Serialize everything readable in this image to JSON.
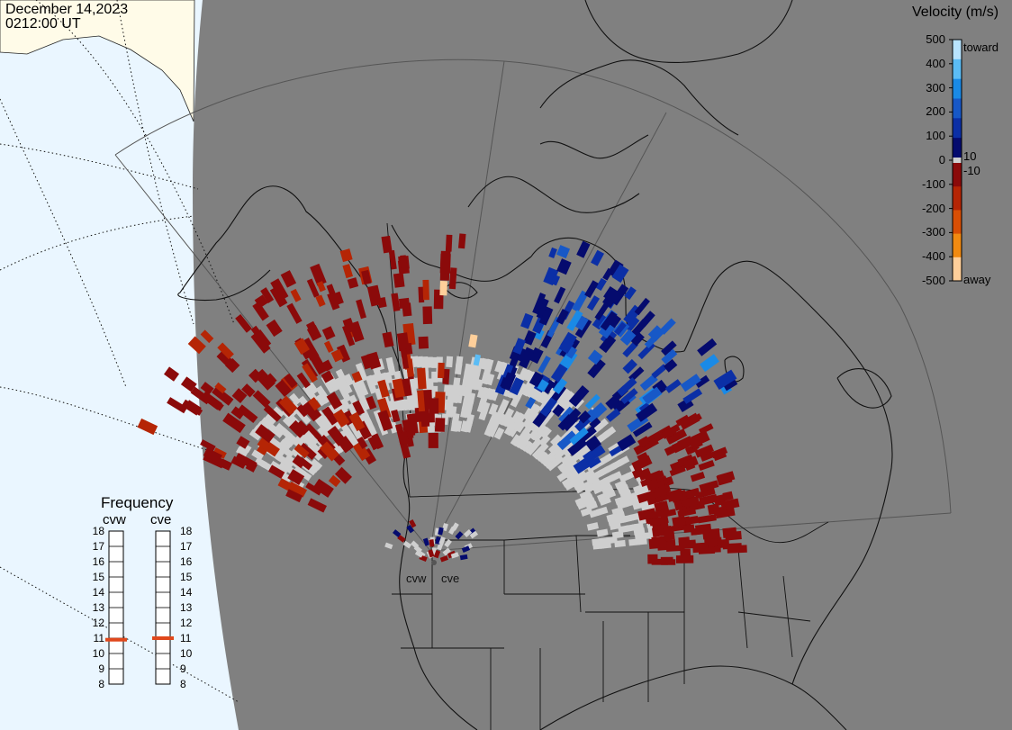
{
  "header": {
    "date": "December 14,2023",
    "time": "0212:00 UT"
  },
  "colorbar": {
    "title": "Velocity (m/s)",
    "ticks": [
      "500",
      "400",
      "300",
      "200",
      "100",
      "0",
      "-100",
      "-200",
      "-300",
      "-400",
      "-500"
    ],
    "near_zero_pos": "10",
    "near_zero_neg": "-10",
    "toward_label": "toward",
    "away_label": "away",
    "colors": [
      "#b8e4ff",
      "#5bbcf5",
      "#1a8ae6",
      "#1758c7",
      "#0b2fa6",
      "#050b6e",
      "#8b0a0a",
      "#b52505",
      "#d94f05",
      "#f18a11",
      "#ffcf9a"
    ],
    "ground_scatter_color": "#cfcfcf"
  },
  "frequency": {
    "title": "Frequency",
    "radars": [
      {
        "name": "cvw",
        "value_mhz": 10.9
      },
      {
        "name": "cve",
        "value_mhz": 11.0
      }
    ],
    "ticks": [
      "18",
      "17",
      "16",
      "15",
      "14",
      "13",
      "12",
      "11",
      "10",
      "9",
      "8"
    ],
    "range_mhz": [
      8,
      18
    ]
  },
  "radar_sites": [
    {
      "name": "cvw"
    },
    {
      "name": "cve"
    }
  ],
  "colors": {
    "night": "#808080",
    "day": "#eaf6ff",
    "land_day": "#fffbe8",
    "marker": "#e0481c"
  }
}
